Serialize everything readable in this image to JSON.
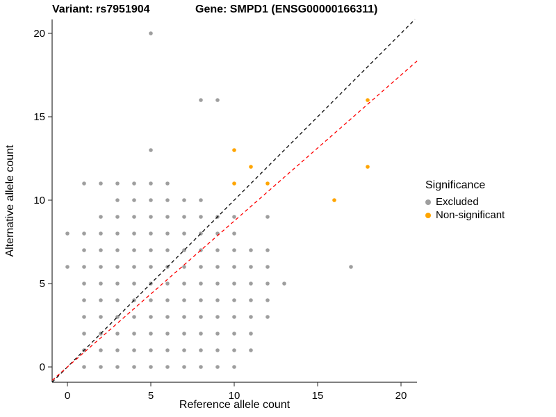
{
  "chart_data": {
    "type": "scatter",
    "title_left": "Variant: rs7951904",
    "title_right": "Gene: SMPD1 (ENSG00000166311)",
    "xlabel": "Reference allele count",
    "ylabel": "Alternative allele count",
    "xlim": [
      -0.9167,
      20.9583
    ],
    "ylim": [
      -0.9167,
      20.8333
    ],
    "xticks": [
      0,
      5,
      10,
      15,
      20
    ],
    "yticks": [
      0,
      5,
      10,
      15,
      20
    ],
    "grid": false,
    "legend": {
      "title": "Significance",
      "position": "right",
      "items": [
        {
          "label": "Excluded",
          "color": "#9e9e9e"
        },
        {
          "label": "Non-significant",
          "color": "#FFA500"
        }
      ]
    },
    "lines": [
      {
        "name": "identity-line",
        "slope": 1,
        "intercept": 0,
        "color": "#000000",
        "style": "dashed"
      },
      {
        "name": "fit-line",
        "slope": 0.875,
        "intercept": 0,
        "color": "#ff0000",
        "style": "dashed"
      }
    ],
    "series": [
      {
        "name": "Excluded",
        "color": "#9e9e9e",
        "points": [
          [
            1,
            0
          ],
          [
            2,
            0
          ],
          [
            3,
            0
          ],
          [
            4,
            0
          ],
          [
            5,
            0
          ],
          [
            6,
            0
          ],
          [
            7,
            0
          ],
          [
            8,
            0
          ],
          [
            9,
            0
          ],
          [
            10,
            0
          ],
          [
            1,
            1
          ],
          [
            2,
            1
          ],
          [
            3,
            1
          ],
          [
            4,
            1
          ],
          [
            5,
            1
          ],
          [
            6,
            1
          ],
          [
            7,
            1
          ],
          [
            8,
            1
          ],
          [
            9,
            1
          ],
          [
            10,
            1
          ],
          [
            11,
            1
          ],
          [
            1,
            2
          ],
          [
            2,
            2
          ],
          [
            3,
            2
          ],
          [
            4,
            2
          ],
          [
            5,
            2
          ],
          [
            6,
            2
          ],
          [
            7,
            2
          ],
          [
            8,
            2
          ],
          [
            9,
            2
          ],
          [
            10,
            2
          ],
          [
            11,
            2
          ],
          [
            1,
            3
          ],
          [
            2,
            3
          ],
          [
            3,
            3
          ],
          [
            4,
            3
          ],
          [
            5,
            3
          ],
          [
            6,
            3
          ],
          [
            7,
            3
          ],
          [
            8,
            3
          ],
          [
            9,
            3
          ],
          [
            10,
            3
          ],
          [
            11,
            3
          ],
          [
            12,
            3
          ],
          [
            1,
            4
          ],
          [
            2,
            4
          ],
          [
            3,
            4
          ],
          [
            4,
            4
          ],
          [
            5,
            4
          ],
          [
            6,
            4
          ],
          [
            7,
            4
          ],
          [
            8,
            4
          ],
          [
            9,
            4
          ],
          [
            10,
            4
          ],
          [
            11,
            4
          ],
          [
            12,
            4
          ],
          [
            1,
            5
          ],
          [
            2,
            5
          ],
          [
            3,
            5
          ],
          [
            4,
            5
          ],
          [
            5,
            5
          ],
          [
            6,
            5
          ],
          [
            7,
            5
          ],
          [
            8,
            5
          ],
          [
            9,
            5
          ],
          [
            10,
            5
          ],
          [
            11,
            5
          ],
          [
            12,
            5
          ],
          [
            13,
            5
          ],
          [
            0,
            6
          ],
          [
            1,
            6
          ],
          [
            2,
            6
          ],
          [
            3,
            6
          ],
          [
            4,
            6
          ],
          [
            5,
            6
          ],
          [
            6,
            6
          ],
          [
            7,
            6
          ],
          [
            8,
            6
          ],
          [
            9,
            6
          ],
          [
            10,
            6
          ],
          [
            11,
            6
          ],
          [
            12,
            6
          ],
          [
            17,
            6
          ],
          [
            1,
            7
          ],
          [
            2,
            7
          ],
          [
            3,
            7
          ],
          [
            4,
            7
          ],
          [
            5,
            7
          ],
          [
            6,
            7
          ],
          [
            7,
            7
          ],
          [
            8,
            7
          ],
          [
            9,
            7
          ],
          [
            10,
            7
          ],
          [
            11,
            7
          ],
          [
            12,
            7
          ],
          [
            0,
            8
          ],
          [
            1,
            8
          ],
          [
            2,
            8
          ],
          [
            3,
            8
          ],
          [
            4,
            8
          ],
          [
            5,
            8
          ],
          [
            6,
            8
          ],
          [
            7,
            8
          ],
          [
            8,
            8
          ],
          [
            9,
            8
          ],
          [
            10,
            8
          ],
          [
            2,
            9
          ],
          [
            3,
            9
          ],
          [
            4,
            9
          ],
          [
            5,
            9
          ],
          [
            6,
            9
          ],
          [
            7,
            9
          ],
          [
            8,
            9
          ],
          [
            9,
            9
          ],
          [
            10,
            9
          ],
          [
            12,
            9
          ],
          [
            3,
            10
          ],
          [
            4,
            10
          ],
          [
            5,
            10
          ],
          [
            6,
            10
          ],
          [
            7,
            10
          ],
          [
            8,
            10
          ],
          [
            1,
            11
          ],
          [
            2,
            11
          ],
          [
            3,
            11
          ],
          [
            4,
            11
          ],
          [
            5,
            11
          ],
          [
            6,
            11
          ],
          [
            5,
            13
          ],
          [
            8,
            16
          ],
          [
            9,
            16
          ],
          [
            5,
            20
          ]
        ]
      },
      {
        "name": "Non-significant",
        "color": "#FFA500",
        "points": [
          [
            10,
            11
          ],
          [
            10,
            13
          ],
          [
            11,
            12
          ],
          [
            12,
            11
          ],
          [
            16,
            10
          ],
          [
            18,
            12
          ],
          [
            18,
            16
          ]
        ]
      }
    ]
  }
}
